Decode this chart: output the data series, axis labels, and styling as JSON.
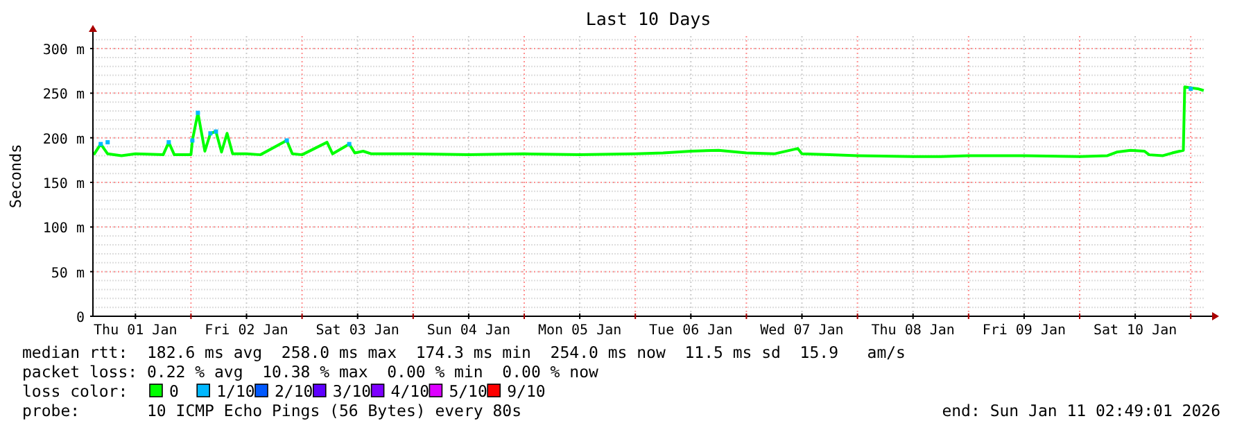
{
  "chart_data": {
    "type": "line",
    "title": "Last 10 Days",
    "ylabel": "Seconds",
    "legend_title": "loss color:",
    "xlim": [
      "2026-01-01T02:49",
      "2026-01-11T02:49"
    ],
    "xticks": [
      {
        "value": "2026-01-01T12:00",
        "label": "Thu 01 Jan"
      },
      {
        "value": "2026-01-02T00:00",
        "label": null
      },
      {
        "value": "2026-01-02T12:00",
        "label": "Fri 02 Jan"
      },
      {
        "value": "2026-01-03T00:00",
        "label": null
      },
      {
        "value": "2026-01-03T12:00",
        "label": "Sat 03 Jan"
      },
      {
        "value": "2026-01-04T00:00",
        "label": null
      },
      {
        "value": "2026-01-04T12:00",
        "label": "Sun 04 Jan"
      },
      {
        "value": "2026-01-05T00:00",
        "label": null
      },
      {
        "value": "2026-01-05T12:00",
        "label": "Mon 05 Jan"
      },
      {
        "value": "2026-01-06T00:00",
        "label": null
      },
      {
        "value": "2026-01-06T12:00",
        "label": "Tue 06 Jan"
      },
      {
        "value": "2026-01-07T00:00",
        "label": null
      },
      {
        "value": "2026-01-07T12:00",
        "label": "Wed 07 Jan"
      },
      {
        "value": "2026-01-08T00:00",
        "label": null
      },
      {
        "value": "2026-01-08T12:00",
        "label": "Thu 08 Jan"
      },
      {
        "value": "2026-01-09T00:00",
        "label": null
      },
      {
        "value": "2026-01-09T12:00",
        "label": "Fri 09 Jan"
      },
      {
        "value": "2026-01-10T00:00",
        "label": null
      },
      {
        "value": "2026-01-10T12:00",
        "label": "Sat 10 Jan"
      },
      {
        "value": "2026-01-11T00:00",
        "label": null
      }
    ],
    "ylim": [
      0,
      314
    ],
    "yticks": [
      0,
      {
        "value": 50,
        "label": "50 m"
      },
      {
        "value": 100,
        "label": "100 m"
      },
      {
        "value": 150,
        "label": "150 m"
      },
      {
        "value": 200,
        "label": "200 m"
      },
      {
        "value": 250,
        "label": "250 m"
      },
      {
        "value": 300,
        "label": "300 m"
      }
    ],
    "grid": true,
    "legend": "bottom",
    "line_style": "solid",
    "series": [
      {
        "name": "0",
        "color": "#00ff00",
        "x": [
          "2026-01-01T03:00",
          "2026-01-01T04:30",
          "2026-01-01T06:00",
          "2026-01-01T09:00",
          "2026-01-01T12:00",
          "2026-01-01T18:00",
          "2026-01-01T19:12",
          "2026-01-01T20:24",
          "2026-01-02T00:00",
          "2026-01-02T00:18",
          "2026-01-02T01:30",
          "2026-01-02T03:00",
          "2026-01-02T04:12",
          "2026-01-02T05:24",
          "2026-01-02T06:36",
          "2026-01-02T07:48",
          "2026-01-02T09:00",
          "2026-01-02T12:00",
          "2026-01-02T15:00",
          "2026-01-02T20:42",
          "2026-01-02T21:54",
          "2026-01-03T00:00",
          "2026-01-03T05:24",
          "2026-01-03T06:36",
          "2026-01-03T10:12",
          "2026-01-03T11:24",
          "2026-01-03T13:12",
          "2026-01-03T15:00",
          "2026-01-04T00:00",
          "2026-01-04T12:00",
          "2026-01-05T00:00",
          "2026-01-05T12:00",
          "2026-01-06T00:00",
          "2026-01-06T06:00",
          "2026-01-06T12:00",
          "2026-01-06T18:00",
          "2026-01-07T00:00",
          "2026-01-07T06:00",
          "2026-01-07T11:06",
          "2026-01-07T12:00",
          "2026-01-07T18:00",
          "2026-01-08T00:00",
          "2026-01-08T12:00",
          "2026-01-08T18:00",
          "2026-01-09T00:00",
          "2026-01-09T12:00",
          "2026-01-10T00:00",
          "2026-01-10T06:00",
          "2026-01-10T08:00",
          "2026-01-10T11:00",
          "2026-01-10T14:00",
          "2026-01-10T15:00",
          "2026-01-10T18:00",
          "2026-01-10T20:00",
          "2026-01-10T22:24",
          "2026-01-10T22:42",
          "2026-01-11T00:00",
          "2026-01-11T01:30",
          "2026-01-11T02:48"
        ],
        "values": [
          181,
          193,
          182,
          180,
          182,
          181,
          195,
          181,
          181,
          197,
          228,
          185,
          205,
          207,
          184,
          205,
          182,
          182,
          181,
          197,
          182,
          181,
          195,
          182,
          193,
          183,
          185,
          182,
          182,
          181,
          182,
          181,
          182,
          183,
          185,
          186,
          183,
          182,
          188,
          182,
          181,
          180,
          179,
          179,
          180,
          180,
          179,
          180,
          184,
          186,
          185,
          181,
          180,
          183,
          186,
          257,
          256,
          255,
          253
        ]
      },
      {
        "name": "1/10",
        "type": "scatter",
        "color": "#00b8ff",
        "x": [
          "2026-01-01T04:30",
          "2026-01-01T06:00",
          "2026-01-01T19:12",
          "2026-01-02T00:18",
          "2026-01-02T01:30",
          "2026-01-02T04:12",
          "2026-01-02T05:24",
          "2026-01-02T20:42",
          "2026-01-03T10:12",
          "2026-01-11T00:00"
        ],
        "values": [
          193,
          195,
          195,
          197,
          228,
          205,
          207,
          197,
          193,
          255
        ]
      },
      {
        "name": "2/10",
        "type": "scatter",
        "color": "#0059ff"
      },
      {
        "name": "3/10",
        "type": "scatter",
        "color": "#5e00ff"
      },
      {
        "name": "4/10",
        "type": "scatter",
        "color": "#7e00ff"
      },
      {
        "name": "5/10",
        "type": "scatter",
        "color": "#dd00ff"
      },
      {
        "name": "9/10",
        "type": "scatter",
        "color": "#ff0000"
      }
    ],
    "annotations": [
      "median rtt:  182.6 ms avg  258.0 ms max  174.3 ms min  254.0 ms now  11.5 ms sd  15.9   am/s",
      "packet loss: 0.22 % avg  10.38 % max  0.00 % min  0.00 % now",
      "probe:       10 ICMP Echo Pings (56 Bytes) every 80s",
      "end: Sun Jan 11 02:49:01 2026"
    ]
  }
}
